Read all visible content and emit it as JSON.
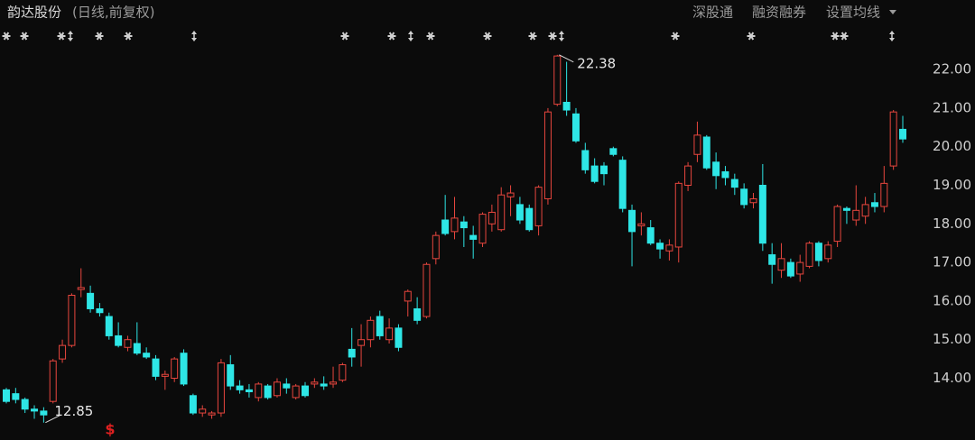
{
  "chart_data": {
    "type": "candlestick",
    "title": "韵达股份",
    "subtitle": "(日线,前复权)",
    "menu": [
      "深股通",
      "融资融券",
      "设置均线"
    ],
    "marker": "$",
    "up_color": "#e8463e",
    "down_color": "#2ee6e6",
    "ylim": [
      12.4,
      23.1
    ],
    "yticks": [
      {
        "value": 14,
        "label": "14.00"
      },
      {
        "value": 15,
        "label": "15.00"
      },
      {
        "value": 16,
        "label": "16.00"
      },
      {
        "value": 17,
        "label": "17.00"
      },
      {
        "value": 18,
        "label": "18.00"
      },
      {
        "value": 19,
        "label": "19.00"
      },
      {
        "value": 20,
        "label": "20.00"
      },
      {
        "value": 21,
        "label": "21.00"
      },
      {
        "value": 22,
        "label": "22.00"
      }
    ],
    "grid": false,
    "open": [
      13.7,
      13.6,
      13.45,
      13.2,
      13.15,
      13.4,
      14.5,
      14.85,
      16.3,
      16.2,
      15.8,
      15.6,
      15.1,
      14.8,
      14.9,
      14.65,
      14.5,
      14.05,
      14.0,
      14.65,
      13.55,
      13.1,
      13.05,
      13.1,
      14.35,
      13.8,
      13.7,
      13.5,
      13.8,
      13.55,
      13.85,
      13.5,
      13.8,
      13.85,
      13.85,
      13.85,
      13.95,
      14.75,
      14.85,
      15.0,
      15.6,
      15.0,
      15.3,
      16.0,
      15.8,
      15.6,
      17.1,
      18.1,
      17.8,
      18.05,
      17.7,
      17.5,
      18.0,
      17.85,
      18.7,
      18.5,
      18.4,
      17.95,
      18.65,
      21.1,
      21.15,
      20.85,
      19.9,
      19.5,
      19.5,
      19.95,
      19.65,
      18.35,
      17.95,
      17.9,
      17.5,
      17.3,
      17.4,
      19.0,
      19.8,
      20.25,
      19.6,
      19.35,
      19.15,
      18.9,
      18.55,
      19.0,
      17.2,
      16.8,
      17.0,
      16.7,
      16.9,
      17.5,
      17.1,
      17.55,
      18.4,
      18.1,
      18.2,
      18.55,
      18.45,
      19.5,
      20.45
    ],
    "high": [
      13.75,
      13.75,
      13.5,
      13.3,
      13.25,
      14.5,
      15.0,
      16.2,
      16.85,
      16.4,
      15.95,
      15.7,
      15.45,
      15.1,
      15.45,
      14.8,
      14.6,
      14.2,
      14.55,
      14.75,
      13.6,
      13.3,
      13.15,
      14.5,
      14.6,
      13.95,
      13.85,
      13.9,
      13.85,
      14.0,
      14.0,
      13.85,
      13.9,
      14.0,
      14.05,
      14.3,
      14.4,
      15.3,
      15.4,
      15.6,
      15.75,
      15.55,
      15.4,
      16.3,
      16.1,
      17.0,
      17.8,
      18.75,
      18.7,
      18.2,
      17.95,
      18.3,
      18.5,
      18.95,
      19.0,
      18.7,
      18.5,
      19.0,
      21.0,
      22.38,
      22.2,
      21.0,
      20.1,
      19.7,
      19.6,
      20.0,
      19.75,
      18.5,
      18.3,
      18.1,
      17.6,
      17.6,
      19.1,
      19.6,
      20.65,
      20.3,
      19.85,
      19.5,
      19.3,
      19.05,
      18.8,
      19.55,
      17.5,
      17.5,
      17.1,
      17.2,
      17.55,
      17.55,
      17.55,
      18.5,
      18.45,
      19.0,
      18.7,
      18.8,
      19.5,
      20.95,
      20.8
    ],
    "low": [
      13.35,
      13.35,
      13.1,
      12.95,
      12.85,
      13.35,
      14.4,
      14.8,
      16.1,
      15.7,
      15.6,
      15.0,
      14.8,
      14.7,
      14.6,
      14.5,
      13.95,
      13.7,
      13.9,
      13.8,
      13.05,
      13.0,
      12.95,
      13.0,
      13.7,
      13.6,
      13.5,
      13.4,
      13.45,
      13.5,
      13.6,
      13.45,
      13.5,
      13.75,
      13.7,
      13.75,
      13.9,
      14.3,
      14.3,
      14.8,
      15.0,
      14.9,
      14.7,
      15.6,
      15.4,
      15.55,
      16.95,
      17.7,
      17.6,
      17.4,
      17.1,
      17.4,
      17.8,
      17.8,
      18.2,
      18.0,
      17.8,
      17.7,
      18.5,
      21.05,
      20.8,
      20.1,
      19.3,
      19.05,
      19.0,
      19.75,
      18.3,
      16.9,
      17.7,
      17.45,
      17.1,
      17.05,
      17.0,
      18.85,
      19.6,
      19.4,
      18.9,
      19.0,
      18.75,
      18.4,
      18.4,
      17.3,
      16.45,
      16.6,
      16.6,
      16.5,
      16.85,
      16.9,
      17.0,
      17.4,
      18.0,
      17.95,
      18.0,
      18.3,
      18.3,
      19.4,
      20.1
    ],
    "close": [
      13.4,
      13.45,
      13.2,
      13.15,
      13.05,
      14.45,
      14.85,
      16.15,
      16.35,
      15.8,
      15.7,
      15.1,
      14.85,
      15.0,
      14.65,
      14.55,
      14.05,
      14.1,
      14.5,
      13.85,
      13.1,
      13.2,
      13.1,
      14.4,
      13.8,
      13.7,
      13.65,
      13.85,
      13.5,
      13.9,
      13.75,
      13.8,
      13.55,
      13.9,
      13.8,
      13.9,
      14.35,
      14.55,
      15.0,
      15.5,
      15.1,
      15.3,
      14.8,
      16.25,
      15.5,
      16.95,
      17.7,
      17.75,
      18.15,
      17.9,
      17.6,
      18.25,
      18.3,
      18.75,
      18.8,
      18.1,
      17.85,
      18.95,
      20.9,
      22.35,
      20.95,
      20.15,
      19.4,
      19.1,
      19.3,
      19.8,
      18.4,
      17.8,
      18.0,
      17.5,
      17.35,
      17.45,
      19.05,
      19.5,
      20.3,
      19.45,
      19.25,
      19.2,
      18.95,
      18.5,
      18.65,
      17.5,
      16.95,
      17.1,
      16.65,
      17.0,
      17.5,
      17.05,
      17.45,
      18.45,
      18.35,
      18.35,
      18.5,
      18.45,
      19.05,
      20.9,
      20.2
    ]
  }
}
